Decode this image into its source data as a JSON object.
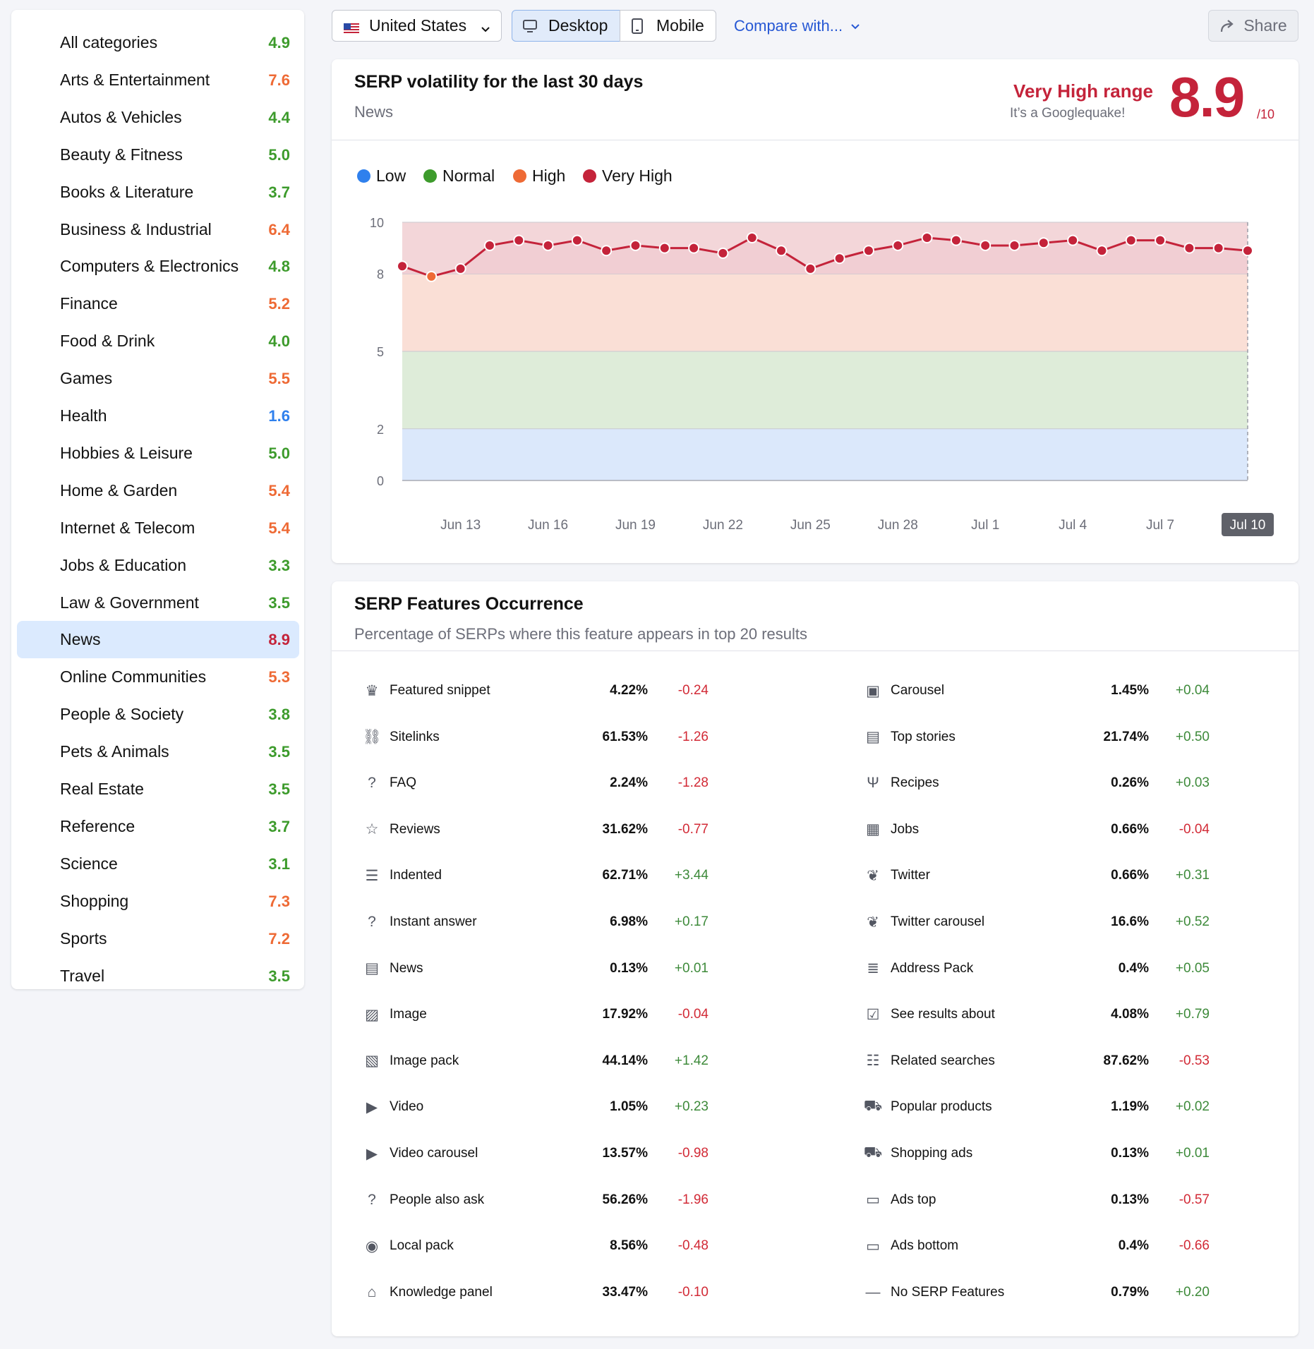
{
  "sidebar": {
    "items": [
      {
        "label": "All categories",
        "score": "4.9",
        "level": "normal"
      },
      {
        "label": "Arts & Entertainment",
        "score": "7.6",
        "level": "high"
      },
      {
        "label": "Autos & Vehicles",
        "score": "4.4",
        "level": "normal"
      },
      {
        "label": "Beauty & Fitness",
        "score": "5.0",
        "level": "normal"
      },
      {
        "label": "Books & Literature",
        "score": "3.7",
        "level": "normal"
      },
      {
        "label": "Business & Industrial",
        "score": "6.4",
        "level": "high"
      },
      {
        "label": "Computers & Electronics",
        "score": "4.8",
        "level": "normal"
      },
      {
        "label": "Finance",
        "score": "5.2",
        "level": "high"
      },
      {
        "label": "Food & Drink",
        "score": "4.0",
        "level": "normal"
      },
      {
        "label": "Games",
        "score": "5.5",
        "level": "high"
      },
      {
        "label": "Health",
        "score": "1.6",
        "level": "low"
      },
      {
        "label": "Hobbies & Leisure",
        "score": "5.0",
        "level": "normal"
      },
      {
        "label": "Home & Garden",
        "score": "5.4",
        "level": "high"
      },
      {
        "label": "Internet & Telecom",
        "score": "5.4",
        "level": "high"
      },
      {
        "label": "Jobs & Education",
        "score": "3.3",
        "level": "normal"
      },
      {
        "label": "Law & Government",
        "score": "3.5",
        "level": "normal"
      },
      {
        "label": "News",
        "score": "8.9",
        "level": "very_high",
        "selected": true
      },
      {
        "label": "Online Communities",
        "score": "5.3",
        "level": "high"
      },
      {
        "label": "People & Society",
        "score": "3.8",
        "level": "normal"
      },
      {
        "label": "Pets & Animals",
        "score": "3.5",
        "level": "normal"
      },
      {
        "label": "Real Estate",
        "score": "3.5",
        "level": "normal"
      },
      {
        "label": "Reference",
        "score": "3.7",
        "level": "normal"
      },
      {
        "label": "Science",
        "score": "3.1",
        "level": "normal"
      },
      {
        "label": "Shopping",
        "score": "7.3",
        "level": "high"
      },
      {
        "label": "Sports",
        "score": "7.2",
        "level": "high"
      },
      {
        "label": "Travel",
        "score": "3.5",
        "level": "normal"
      }
    ]
  },
  "level_colors": {
    "low": "#2f80ed",
    "normal": "#3d9b2c",
    "high": "#ee6a35",
    "very_high": "#c4233a"
  },
  "toolbar": {
    "country": "United States",
    "desktop_label": "Desktop",
    "mobile_label": "Mobile",
    "compare_label": "Compare with...",
    "share_label": "Share",
    "selected_device": "Desktop"
  },
  "volatility": {
    "title": "SERP volatility for the last 30 days",
    "subtitle": "News",
    "range_title": "Very High range",
    "range_sub": "It’s a Googlequake!",
    "score": "8.9",
    "score_max": "/10"
  },
  "chart_data": {
    "type": "line",
    "legend": [
      {
        "name": "Low",
        "color": "#2f80ed"
      },
      {
        "name": "Normal",
        "color": "#3d9b2c"
      },
      {
        "name": "High",
        "color": "#ee6a35"
      },
      {
        "name": "Very High",
        "color": "#c4233a"
      }
    ],
    "y_ticks": [
      "10",
      "8",
      "5",
      "2",
      "0"
    ],
    "ylim": [
      0,
      10
    ],
    "bands": [
      {
        "from": 0,
        "to": 2,
        "level": "Low",
        "fill": "#dbe8fb"
      },
      {
        "from": 2,
        "to": 5,
        "level": "Normal",
        "fill": "#deecd9"
      },
      {
        "from": 5,
        "to": 8,
        "level": "High",
        "fill": "#fadfd6"
      },
      {
        "from": 8,
        "to": 10,
        "level": "Very High",
        "fill": "#f3d6d9"
      }
    ],
    "x_labels": [
      "Jun 13",
      "Jun 16",
      "Jun 19",
      "Jun 22",
      "Jun 25",
      "Jun 28",
      "Jul 1",
      "Jul 4",
      "Jul 7",
      "Jul 10"
    ],
    "x_dates": [
      "Jun 11",
      "Jun 12",
      "Jun 13",
      "Jun 14",
      "Jun 15",
      "Jun 16",
      "Jun 17",
      "Jun 18",
      "Jun 19",
      "Jun 20",
      "Jun 21",
      "Jun 22",
      "Jun 23",
      "Jun 24",
      "Jun 25",
      "Jun 26",
      "Jun 27",
      "Jun 28",
      "Jun 29",
      "Jun 30",
      "Jul 1",
      "Jul 2",
      "Jul 3",
      "Jul 4",
      "Jul 5",
      "Jul 6",
      "Jul 7",
      "Jul 8",
      "Jul 9",
      "Jul 10"
    ],
    "values": [
      8.3,
      7.9,
      8.2,
      9.1,
      9.3,
      9.1,
      9.3,
      8.9,
      9.1,
      9.0,
      9.0,
      8.8,
      9.4,
      8.9,
      8.2,
      8.6,
      8.9,
      9.1,
      9.4,
      9.3,
      9.1,
      9.1,
      9.2,
      9.3,
      8.9,
      9.3,
      9.3,
      9.0,
      9.0,
      8.9
    ],
    "series": [
      {
        "name": "News"
      }
    ],
    "highlighted_label": "Jul 10"
  },
  "features": {
    "title": "SERP Features Occurrence",
    "subtitle": "Percentage of SERPs where this feature appears in top 20 results",
    "left": [
      {
        "name": "Featured snippet",
        "pct": "4.22%",
        "delta": "-0.24",
        "icon": "crown-icon",
        "glyph": "♛"
      },
      {
        "name": "Sitelinks",
        "pct": "61.53%",
        "delta": "-1.26",
        "icon": "link-icon",
        "glyph": "⛓"
      },
      {
        "name": "FAQ",
        "pct": "2.24%",
        "delta": "-1.28",
        "icon": "question-icon",
        "glyph": "?"
      },
      {
        "name": "Reviews",
        "pct": "31.62%",
        "delta": "-0.77",
        "icon": "star-icon",
        "glyph": "☆"
      },
      {
        "name": "Indented",
        "pct": "62.71%",
        "delta": "+3.44",
        "icon": "indented-icon",
        "glyph": "☰"
      },
      {
        "name": "Instant answer",
        "pct": "6.98%",
        "delta": "+0.17",
        "icon": "question-circle-icon",
        "glyph": "?"
      },
      {
        "name": "News",
        "pct": "0.13%",
        "delta": "+0.01",
        "icon": "news-icon",
        "glyph": "▤"
      },
      {
        "name": "Image",
        "pct": "17.92%",
        "delta": "-0.04",
        "icon": "image-icon",
        "glyph": "▨"
      },
      {
        "name": "Image pack",
        "pct": "44.14%",
        "delta": "+1.42",
        "icon": "image-pack-icon",
        "glyph": "▧"
      },
      {
        "name": "Video",
        "pct": "1.05%",
        "delta": "+0.23",
        "icon": "video-icon",
        "glyph": "▶"
      },
      {
        "name": "Video carousel",
        "pct": "13.57%",
        "delta": "-0.98",
        "icon": "video-carousel-icon",
        "glyph": "▶"
      },
      {
        "name": "People also ask",
        "pct": "56.26%",
        "delta": "-1.96",
        "icon": "people-ask-icon",
        "glyph": "?"
      },
      {
        "name": "Local pack",
        "pct": "8.56%",
        "delta": "-0.48",
        "icon": "location-pin-icon",
        "glyph": "◉"
      },
      {
        "name": "Knowledge panel",
        "pct": "33.47%",
        "delta": "-0.10",
        "icon": "graduation-cap-icon",
        "glyph": "⌂"
      }
    ],
    "right": [
      {
        "name": "Carousel",
        "pct": "1.45%",
        "delta": "+0.04",
        "icon": "carousel-icon",
        "glyph": "▣"
      },
      {
        "name": "Top stories",
        "pct": "21.74%",
        "delta": "+0.50",
        "icon": "top-stories-icon",
        "glyph": "▤"
      },
      {
        "name": "Recipes",
        "pct": "0.26%",
        "delta": "+0.03",
        "icon": "fork-knife-icon",
        "glyph": "Ψ"
      },
      {
        "name": "Jobs",
        "pct": "0.66%",
        "delta": "-0.04",
        "icon": "briefcase-icon",
        "glyph": "▦"
      },
      {
        "name": "Twitter",
        "pct": "0.66%",
        "delta": "+0.31",
        "icon": "twitter-icon",
        "glyph": "❦"
      },
      {
        "name": "Twitter carousel",
        "pct": "16.6%",
        "delta": "+0.52",
        "icon": "twitter-carousel-icon",
        "glyph": "❦"
      },
      {
        "name": "Address Pack",
        "pct": "0.4%",
        "delta": "+0.05",
        "icon": "address-pack-icon",
        "glyph": "≣"
      },
      {
        "name": "See results about",
        "pct": "4.08%",
        "delta": "+0.79",
        "icon": "see-results-icon",
        "glyph": "☑"
      },
      {
        "name": "Related searches",
        "pct": "87.62%",
        "delta": "-0.53",
        "icon": "list-icon",
        "glyph": "☷"
      },
      {
        "name": "Popular products",
        "pct": "1.19%",
        "delta": "+0.02",
        "icon": "cart-plus-icon",
        "glyph": "⛟"
      },
      {
        "name": "Shopping ads",
        "pct": "0.13%",
        "delta": "+0.01",
        "icon": "cart-icon",
        "glyph": "⛟"
      },
      {
        "name": "Ads top",
        "pct": "0.13%",
        "delta": "-0.57",
        "icon": "ads-top-icon",
        "glyph": "▭"
      },
      {
        "name": "Ads bottom",
        "pct": "0.4%",
        "delta": "-0.66",
        "icon": "ads-bottom-icon",
        "glyph": "▭"
      },
      {
        "name": "No SERP Features",
        "pct": "0.79%",
        "delta": "+0.20",
        "icon": "dash-icon",
        "glyph": "—"
      }
    ],
    "positive_color": "#3d8a3a",
    "negative_color": "#d22a36"
  }
}
